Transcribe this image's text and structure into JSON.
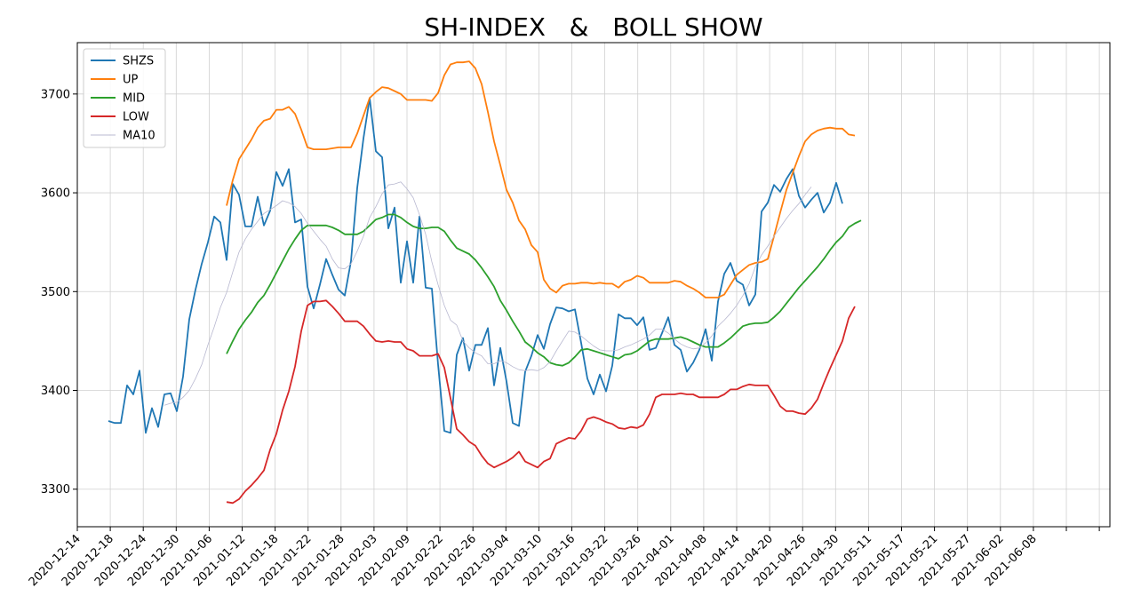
{
  "chart_data": {
    "type": "line",
    "title": "SH-INDEX   &   BOLL SHOW",
    "xlabel": "",
    "ylabel": "",
    "ylim": [
      3262,
      3752
    ],
    "yticks": [
      3300,
      3400,
      3500,
      3600,
      3700
    ],
    "ytick_labels": [
      "3300",
      "3400",
      "3500",
      "3600",
      "3700"
    ],
    "xlim": [
      -5,
      161
    ],
    "xtick_labels": [
      "2020-12-14",
      "2020-12-18",
      "2020-12-24",
      "2020-12-30",
      "2021-01-06",
      "2021-01-12",
      "2021-01-18",
      "2021-01-22",
      "2021-01-28",
      "2021-02-03",
      "2021-02-09",
      "2021-02-22",
      "2021-02-26",
      "2021-03-04",
      "2021-03-10",
      "2021-03-16",
      "2021-03-22",
      "2021-03-26",
      "2021-04-01",
      "2021-04-08",
      "2021-04-14",
      "2021-04-20",
      "2021-04-26",
      "2021-04-30",
      "2021-05-11",
      "2021-05-17",
      "2021-05-21",
      "2021-05-27",
      "2021-06-02",
      "2021-06-08",
      "",
      ""
    ],
    "grid": true,
    "legend_position": "upper-left",
    "colors": {
      "SHZS": "#1f77b4",
      "UP": "#ff7f0e",
      "MID": "#2ca02c",
      "LOW": "#d62728",
      "MA10": "#b8b8d0"
    },
    "series": [
      {
        "name": "SHZS",
        "start": 0,
        "values": [
          3369,
          3367,
          3367,
          3405,
          3396,
          3420,
          3357,
          3382,
          3363,
          3396,
          3397,
          3379,
          3414,
          3472,
          3502,
          3528,
          3550,
          3576,
          3570,
          3532,
          3609,
          3598,
          3566,
          3566,
          3596,
          3567,
          3582,
          3621,
          3607,
          3624,
          3570,
          3573,
          3505,
          3483,
          3507,
          3533,
          3517,
          3502,
          3496,
          3531,
          3605,
          3655,
          3696,
          3642,
          3636,
          3564,
          3585,
          3509,
          3551,
          3509,
          3576,
          3504,
          3503,
          3426,
          3359,
          3357,
          3436,
          3453,
          3420,
          3446,
          3446,
          3463,
          3405,
          3443,
          3409,
          3367,
          3364,
          3419,
          3435,
          3456,
          3442,
          3467,
          3484,
          3483,
          3480,
          3482,
          3448,
          3412,
          3396,
          3416,
          3399,
          3425,
          3477,
          3473,
          3473,
          3466,
          3474,
          3441,
          3443,
          3458,
          3474,
          3446,
          3441,
          3419,
          3428,
          3441,
          3462,
          3430,
          3490,
          3518,
          3529,
          3511,
          3507,
          3486,
          3497,
          3581,
          3590,
          3608,
          3601,
          3614,
          3624,
          3597,
          3585,
          3593,
          3600,
          3580,
          3590,
          3610,
          3589
        ]
      },
      {
        "name": "UP",
        "start": 19,
        "values": [
          3587,
          3613,
          3634,
          3644,
          3654,
          3666,
          3673,
          3675,
          3684,
          3684,
          3687,
          3680,
          3664,
          3646,
          3644,
          3644,
          3644,
          3645,
          3646,
          3646,
          3646,
          3660,
          3678,
          3696,
          3702,
          3707,
          3706,
          3703,
          3700,
          3694,
          3694,
          3694,
          3694,
          3693,
          3701,
          3719,
          3730,
          3732,
          3732,
          3733,
          3726,
          3710,
          3682,
          3652,
          3628,
          3603,
          3590,
          3572,
          3563,
          3547,
          3540,
          3512,
          3503,
          3499,
          3506,
          3508,
          3508,
          3509,
          3509,
          3508,
          3509,
          3508,
          3508,
          3504,
          3510,
          3512,
          3516,
          3514,
          3509,
          3509,
          3509,
          3509,
          3511,
          3510,
          3506,
          3503,
          3499,
          3494,
          3494,
          3494,
          3497,
          3507,
          3517,
          3522,
          3527,
          3529,
          3530,
          3533,
          3556,
          3580,
          3603,
          3620,
          3637,
          3652,
          3659,
          3663,
          3665,
          3666,
          3665,
          3665,
          3659,
          3658
        ]
      },
      {
        "name": "MID",
        "start": 19,
        "values": [
          3437,
          3450,
          3462,
          3471,
          3479,
          3489,
          3496,
          3507,
          3519,
          3531,
          3543,
          3553,
          3562,
          3567,
          3567,
          3567,
          3567,
          3565,
          3562,
          3558,
          3558,
          3558,
          3561,
          3567,
          3573,
          3575,
          3578,
          3578,
          3575,
          3570,
          3566,
          3564,
          3564,
          3565,
          3565,
          3561,
          3552,
          3544,
          3541,
          3538,
          3532,
          3524,
          3515,
          3505,
          3491,
          3481,
          3470,
          3460,
          3449,
          3444,
          3438,
          3434,
          3428,
          3426,
          3425,
          3428,
          3434,
          3441,
          3442,
          3440,
          3438,
          3436,
          3434,
          3432,
          3436,
          3437,
          3440,
          3445,
          3450,
          3452,
          3452,
          3452,
          3453,
          3454,
          3452,
          3449,
          3446,
          3444,
          3444,
          3444,
          3448,
          3453,
          3459,
          3465,
          3467,
          3468,
          3468,
          3469,
          3474,
          3480,
          3488,
          3496,
          3504,
          3511,
          3518,
          3525,
          3533,
          3542,
          3550,
          3556,
          3565,
          3569,
          3572
        ]
      },
      {
        "name": "LOW",
        "start": 19,
        "values": [
          3287,
          3286,
          3290,
          3298,
          3304,
          3311,
          3319,
          3340,
          3356,
          3380,
          3399,
          3424,
          3460,
          3486,
          3490,
          3490,
          3491,
          3485,
          3478,
          3470,
          3470,
          3470,
          3465,
          3457,
          3450,
          3449,
          3450,
          3449,
          3449,
          3442,
          3440,
          3435,
          3435,
          3435,
          3437,
          3423,
          3392,
          3361,
          3355,
          3348,
          3344,
          3334,
          3326,
          3322,
          3325,
          3328,
          3332,
          3338,
          3328,
          3325,
          3322,
          3328,
          3331,
          3346,
          3349,
          3352,
          3351,
          3359,
          3371,
          3373,
          3371,
          3368,
          3366,
          3362,
          3361,
          3363,
          3362,
          3365,
          3376,
          3393,
          3396,
          3396,
          3396,
          3397,
          3396,
          3396,
          3393,
          3393,
          3393,
          3393,
          3396,
          3401,
          3401,
          3404,
          3406,
          3405,
          3405,
          3405,
          3395,
          3384,
          3379,
          3379,
          3377,
          3376,
          3382,
          3391,
          3407,
          3422,
          3436,
          3450,
          3473,
          3485
        ]
      },
      {
        "name": "MA10",
        "start": 9,
        "values": [
          3385,
          3387,
          3388,
          3393,
          3400,
          3412,
          3426,
          3446,
          3464,
          3484,
          3499,
          3520,
          3540,
          3553,
          3563,
          3571,
          3579,
          3583,
          3587,
          3592,
          3590,
          3586,
          3579,
          3569,
          3561,
          3553,
          3546,
          3533,
          3524,
          3523,
          3528,
          3541,
          3556,
          3575,
          3586,
          3599,
          3608,
          3609,
          3611,
          3604,
          3595,
          3578,
          3558,
          3530,
          3507,
          3486,
          3471,
          3466,
          3450,
          3443,
          3438,
          3435,
          3427,
          3427,
          3430,
          3428,
          3424,
          3421,
          3420,
          3421,
          3420,
          3423,
          3429,
          3440,
          3450,
          3460,
          3459,
          3455,
          3450,
          3445,
          3441,
          3440,
          3440,
          3441,
          3444,
          3446,
          3449,
          3452,
          3456,
          3462,
          3462,
          3458,
          3452,
          3447,
          3444,
          3442,
          3443,
          3448,
          3455,
          3465,
          3471,
          3478,
          3486,
          3496,
          3508,
          3525,
          3537,
          3546,
          3556,
          3565,
          3574,
          3582,
          3589,
          3598,
          3606
        ]
      }
    ]
  }
}
